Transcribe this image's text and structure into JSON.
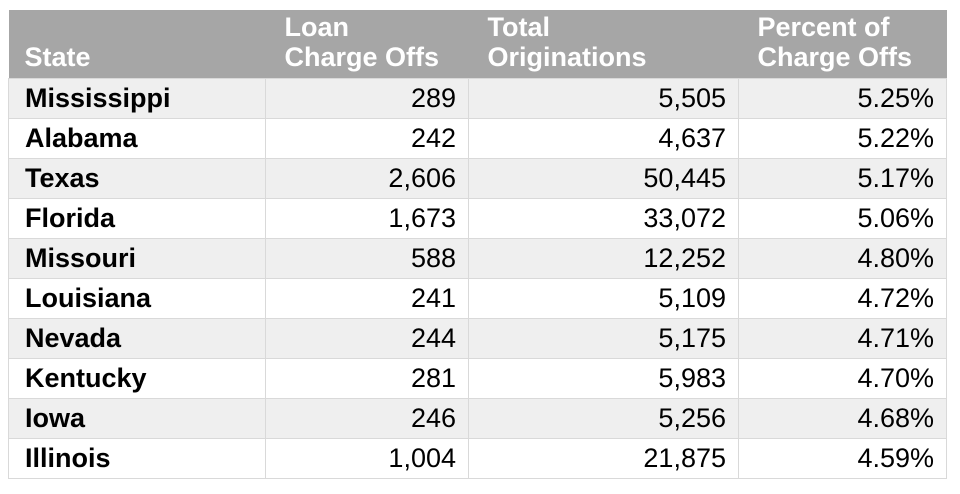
{
  "colors": {
    "header_bg": "#a6a6a6",
    "header_text": "#ffffff",
    "stripe_row_bg": "#efefef",
    "plain_row_bg": "#ffffff",
    "border": "#d9d9d9",
    "body_text": "#000000"
  },
  "table": {
    "headers": {
      "state": "State",
      "charge_offs": "Loan\nCharge Offs",
      "originations": "Total\nOriginations",
      "percent": "Percent of\nCharge Offs"
    },
    "rows": [
      {
        "state": "Mississippi",
        "charge_offs": "289",
        "originations": "5,505",
        "percent": "5.25%"
      },
      {
        "state": "Alabama",
        "charge_offs": "242",
        "originations": "4,637",
        "percent": "5.22%"
      },
      {
        "state": "Texas",
        "charge_offs": "2,606",
        "originations": "50,445",
        "percent": "5.17%"
      },
      {
        "state": "Florida",
        "charge_offs": "1,673",
        "originations": "33,072",
        "percent": "5.06%"
      },
      {
        "state": "Missouri",
        "charge_offs": "588",
        "originations": "12,252",
        "percent": "4.80%"
      },
      {
        "state": "Louisiana",
        "charge_offs": "241",
        "originations": "5,109",
        "percent": "4.72%"
      },
      {
        "state": "Nevada",
        "charge_offs": "244",
        "originations": "5,175",
        "percent": "4.71%"
      },
      {
        "state": "Kentucky",
        "charge_offs": "281",
        "originations": "5,983",
        "percent": "4.70%"
      },
      {
        "state": "Iowa",
        "charge_offs": "246",
        "originations": "5,256",
        "percent": "4.68%"
      },
      {
        "state": "Illinois",
        "charge_offs": "1,004",
        "originations": "21,875",
        "percent": "4.59%"
      }
    ]
  },
  "chart_data": {
    "type": "table",
    "columns": [
      "State",
      "Loan Charge Offs",
      "Total Originations",
      "Percent of Charge Offs"
    ],
    "rows": [
      [
        "Mississippi",
        289,
        5505,
        "5.25%"
      ],
      [
        "Alabama",
        242,
        4637,
        "5.22%"
      ],
      [
        "Texas",
        2606,
        50445,
        "5.17%"
      ],
      [
        "Florida",
        1673,
        33072,
        "5.06%"
      ],
      [
        "Missouri",
        588,
        12252,
        "4.80%"
      ],
      [
        "Louisiana",
        241,
        5109,
        "4.72%"
      ],
      [
        "Nevada",
        244,
        5175,
        "4.71%"
      ],
      [
        "Kentucky",
        281,
        5983,
        "4.70%"
      ],
      [
        "Iowa",
        246,
        5256,
        "4.68%"
      ],
      [
        "Illinois",
        1004,
        21875,
        "4.59%"
      ]
    ]
  }
}
